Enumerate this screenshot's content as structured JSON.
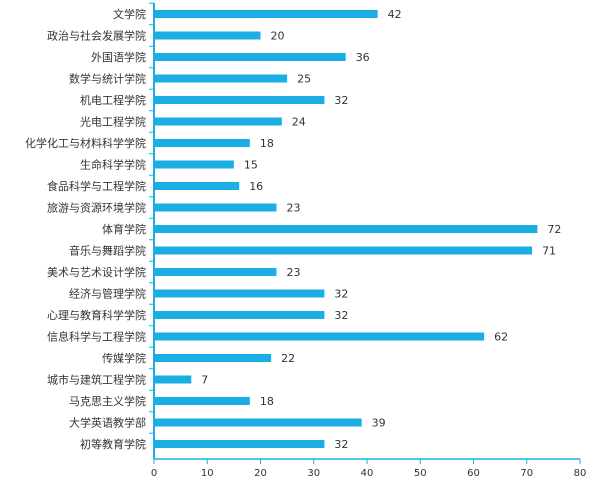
{
  "chart_data": {
    "type": "bar",
    "orientation": "horizontal",
    "categories": [
      "文学院",
      "政治与社会发展学院",
      "外国语学院",
      "数学与统计学院",
      "机电工程学院",
      "光电工程学院",
      "化学化工与材料科学学院",
      "生命科学学院",
      "食品科学与工程学院",
      "旅游与资源环境学院",
      "体育学院",
      "音乐与舞蹈学院",
      "美术与艺术设计学院",
      "经济与管理学院",
      "心理与教育科学学院",
      "信息科学与工程学院",
      "传媒学院",
      "城市与建筑工程学院",
      "马克思主义学院",
      "大学英语教学部",
      "初等教育学院"
    ],
    "values": [
      42,
      20,
      36,
      25,
      32,
      24,
      18,
      15,
      16,
      23,
      72,
      71,
      23,
      32,
      32,
      62,
      22,
      7,
      18,
      39,
      32
    ],
    "xlim": [
      0,
      80
    ],
    "xticks": [
      0,
      10,
      20,
      30,
      40,
      50,
      60,
      70,
      80
    ],
    "title": "",
    "xlabel": "",
    "ylabel": "",
    "bar_color": "#1aaee5",
    "axis_color": "#1aaee5",
    "data_labels": true,
    "grid": false,
    "legend": "none"
  }
}
